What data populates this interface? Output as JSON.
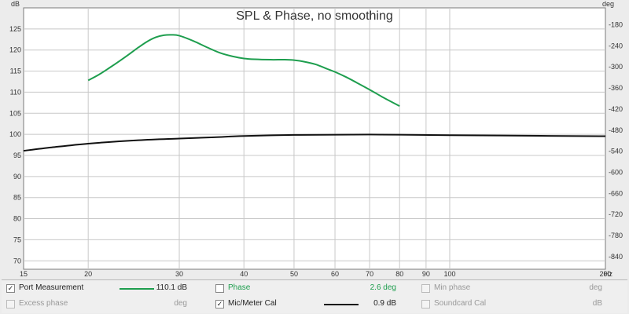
{
  "chart_data": {
    "type": "line",
    "title": "SPL & Phase, no smoothing",
    "x_scale": "log",
    "xlim": [
      15,
      200
    ],
    "x_unit": "Hz",
    "x_ticks": [
      15,
      20,
      30,
      40,
      50,
      60,
      70,
      80,
      90,
      100,
      200
    ],
    "ylim_left": [
      68,
      130
    ],
    "y_left_unit": "dB",
    "y_left_ticks": [
      70,
      75,
      80,
      85,
      90,
      95,
      100,
      105,
      110,
      115,
      120,
      125
    ],
    "ylim_right": [
      -876,
      -132
    ],
    "y_right_unit": "deg",
    "y_right_ticks": [
      -180,
      -240,
      -300,
      -360,
      -420,
      -480,
      -540,
      -600,
      -660,
      -720,
      -780,
      -840
    ],
    "grid": true,
    "series": [
      {
        "name": "Port Measurement",
        "color": "#1e9e4e",
        "x": [
          20,
          21,
          22,
          23,
          24,
          25,
          26,
          27,
          28,
          29,
          30,
          32,
          34,
          36,
          38,
          40,
          42,
          45,
          48,
          50,
          52,
          55,
          58,
          60,
          63,
          66,
          70,
          74,
          78,
          80
        ],
        "y": [
          112.8,
          114.2,
          115.8,
          117.4,
          119.0,
          120.6,
          122.0,
          123.0,
          123.5,
          123.6,
          123.4,
          122.1,
          120.6,
          119.3,
          118.5,
          118.0,
          117.8,
          117.7,
          117.7,
          117.6,
          117.3,
          116.6,
          115.5,
          114.8,
          113.6,
          112.3,
          110.6,
          108.9,
          107.4,
          106.7
        ]
      },
      {
        "name": "Mic/Meter Cal",
        "color": "#111111",
        "x": [
          15,
          17,
          20,
          25,
          30,
          35,
          40,
          50,
          60,
          70,
          80,
          100,
          150,
          200
        ],
        "y": [
          96.1,
          96.9,
          97.8,
          98.6,
          99.0,
          99.3,
          99.6,
          99.85,
          99.9,
          99.95,
          99.9,
          99.8,
          99.65,
          99.55
        ]
      }
    ]
  },
  "legend": {
    "rows": [
      [
        {
          "label": "Port Measurement",
          "checked": true,
          "enabled": true,
          "color": "#1e9e4e",
          "value": "110.1 dB"
        },
        {
          "label": "Phase",
          "checked": false,
          "enabled": true,
          "color": "#1e9e4e",
          "value": "2.6 deg"
        },
        {
          "label": "Min phase",
          "checked": false,
          "enabled": false,
          "color": "#999999",
          "value": "deg"
        }
      ],
      [
        {
          "label": "Excess phase",
          "checked": false,
          "enabled": false,
          "color": "#999999",
          "value": "deg"
        },
        {
          "label": "Mic/Meter Cal",
          "checked": true,
          "enabled": true,
          "color": "#111111",
          "value": "0.9 dB"
        },
        {
          "label": "Soundcard Cal",
          "checked": false,
          "enabled": false,
          "color": "#999999",
          "value": "dB"
        }
      ]
    ]
  }
}
